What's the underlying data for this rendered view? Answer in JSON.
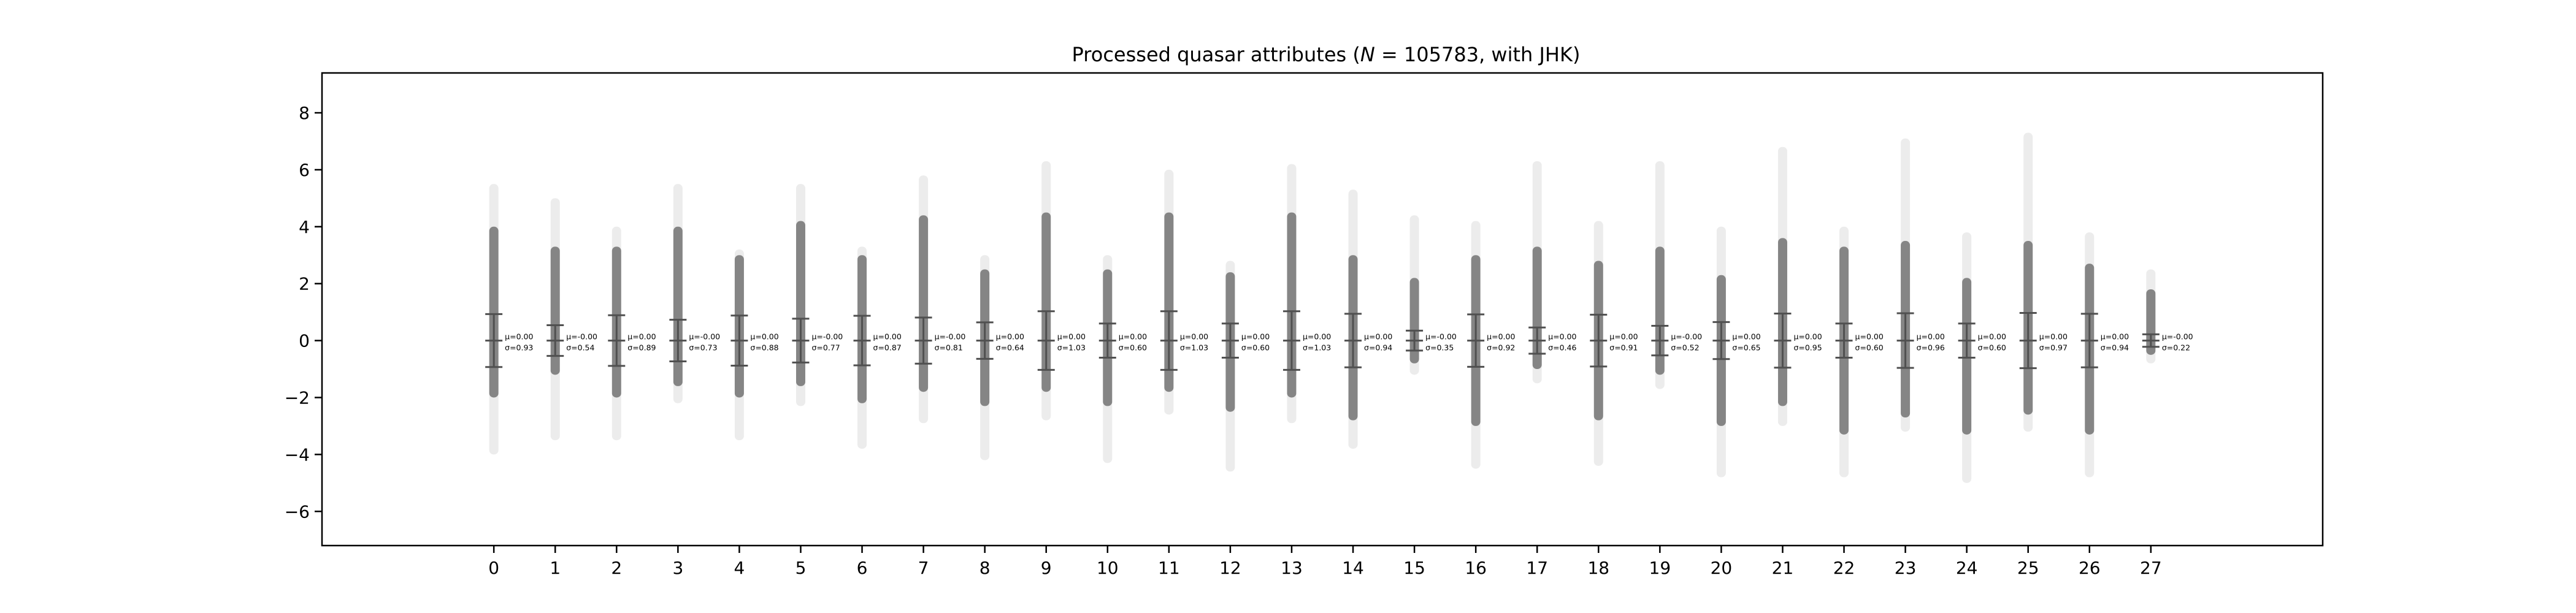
{
  "chart_data": {
    "type": "strip",
    "title": "Processed quasar attributes (N = 105783, with JHK)",
    "title_parts": [
      "Processed quasar attributes (",
      "N",
      " = 105783, with JHK)"
    ],
    "xlabel": "",
    "ylabel": "",
    "xlim": [
      -2.8,
      29.8
    ],
    "ylim": [
      -7.2,
      9.4
    ],
    "yticks": [
      -6,
      -4,
      -2,
      0,
      2,
      4,
      6,
      8
    ],
    "grid": false,
    "point_color": "#808080",
    "errorbar_color": "#505050",
    "attributes": [
      {
        "x": 0,
        "label": "0",
        "mean": 0.0,
        "mean_text": "μ=0.00",
        "std": 0.93,
        "std_text": "σ=0.93",
        "core": [
          -2.0,
          4.0
        ],
        "halo": [
          -4.0,
          5.5
        ]
      },
      {
        "x": 1,
        "label": "1",
        "mean": 0.0,
        "mean_text": "μ=-0.00",
        "std": 0.54,
        "std_text": "σ=0.54",
        "core": [
          -1.2,
          3.3
        ],
        "halo": [
          -3.5,
          5.0
        ]
      },
      {
        "x": 2,
        "label": "2",
        "mean": 0.0,
        "mean_text": "μ=0.00",
        "std": 0.89,
        "std_text": "σ=0.89",
        "core": [
          -2.0,
          3.3
        ],
        "halo": [
          -3.5,
          4.0
        ]
      },
      {
        "x": 3,
        "label": "3",
        "mean": 0.0,
        "mean_text": "μ=-0.00",
        "std": 0.73,
        "std_text": "σ=0.73",
        "core": [
          -1.6,
          4.0
        ],
        "halo": [
          -2.2,
          5.5
        ]
      },
      {
        "x": 4,
        "label": "4",
        "mean": 0.0,
        "mean_text": "μ=0.00",
        "std": 0.88,
        "std_text": "σ=0.88",
        "core": [
          -2.0,
          3.0
        ],
        "halo": [
          -3.5,
          3.2
        ]
      },
      {
        "x": 5,
        "label": "5",
        "mean": 0.0,
        "mean_text": "μ=-0.00",
        "std": 0.77,
        "std_text": "σ=0.77",
        "core": [
          -1.6,
          4.2
        ],
        "halo": [
          -2.3,
          5.5
        ]
      },
      {
        "x": 6,
        "label": "6",
        "mean": 0.0,
        "mean_text": "μ=0.00",
        "std": 0.87,
        "std_text": "σ=0.87",
        "core": [
          -2.2,
          3.0
        ],
        "halo": [
          -3.8,
          3.3
        ]
      },
      {
        "x": 7,
        "label": "7",
        "mean": 0.0,
        "mean_text": "μ=-0.00",
        "std": 0.81,
        "std_text": "σ=0.81",
        "core": [
          -1.8,
          4.4
        ],
        "halo": [
          -2.9,
          5.8
        ]
      },
      {
        "x": 8,
        "label": "8",
        "mean": 0.0,
        "mean_text": "μ=0.00",
        "std": 0.64,
        "std_text": "σ=0.64",
        "core": [
          -2.3,
          2.5
        ],
        "halo": [
          -4.2,
          3.0
        ]
      },
      {
        "x": 9,
        "label": "9",
        "mean": 0.0,
        "mean_text": "μ=0.00",
        "std": 1.03,
        "std_text": "σ=1.03",
        "core": [
          -1.8,
          4.5
        ],
        "halo": [
          -2.8,
          6.3
        ]
      },
      {
        "x": 10,
        "label": "10",
        "mean": 0.0,
        "mean_text": "μ=0.00",
        "std": 0.6,
        "std_text": "σ=0.60",
        "core": [
          -2.3,
          2.5
        ],
        "halo": [
          -4.3,
          3.0
        ]
      },
      {
        "x": 11,
        "label": "11",
        "mean": 0.0,
        "mean_text": "μ=0.00",
        "std": 1.03,
        "std_text": "σ=1.03",
        "core": [
          -1.8,
          4.5
        ],
        "halo": [
          -2.6,
          6.0
        ]
      },
      {
        "x": 12,
        "label": "12",
        "mean": 0.0,
        "mean_text": "μ=0.00",
        "std": 0.6,
        "std_text": "σ=0.60",
        "core": [
          -2.5,
          2.4
        ],
        "halo": [
          -4.6,
          2.8
        ]
      },
      {
        "x": 13,
        "label": "13",
        "mean": 0.0,
        "mean_text": "μ=0.00",
        "std": 1.03,
        "std_text": "σ=1.03",
        "core": [
          -2.0,
          4.5
        ],
        "halo": [
          -2.9,
          6.2
        ]
      },
      {
        "x": 14,
        "label": "14",
        "mean": 0.0,
        "mean_text": "μ=0.00",
        "std": 0.94,
        "std_text": "σ=0.94",
        "core": [
          -2.8,
          3.0
        ],
        "halo": [
          -3.8,
          5.3
        ]
      },
      {
        "x": 15,
        "label": "15",
        "mean": 0.0,
        "mean_text": "μ=-0.00",
        "std": 0.35,
        "std_text": "σ=0.35",
        "core": [
          -0.8,
          2.2
        ],
        "halo": [
          -1.2,
          4.4
        ]
      },
      {
        "x": 16,
        "label": "16",
        "mean": 0.0,
        "mean_text": "μ=0.00",
        "std": 0.92,
        "std_text": "σ=0.92",
        "core": [
          -3.0,
          3.0
        ],
        "halo": [
          -4.5,
          4.2
        ]
      },
      {
        "x": 17,
        "label": "17",
        "mean": 0.0,
        "mean_text": "μ=0.00",
        "std": 0.46,
        "std_text": "σ=0.46",
        "core": [
          -1.0,
          3.3
        ],
        "halo": [
          -1.5,
          6.3
        ]
      },
      {
        "x": 18,
        "label": "18",
        "mean": 0.0,
        "mean_text": "μ=0.00",
        "std": 0.91,
        "std_text": "σ=0.91",
        "core": [
          -2.8,
          2.8
        ],
        "halo": [
          -4.4,
          4.2
        ]
      },
      {
        "x": 19,
        "label": "19",
        "mean": 0.0,
        "mean_text": "μ=-0.00",
        "std": 0.52,
        "std_text": "σ=0.52",
        "core": [
          -1.2,
          3.3
        ],
        "halo": [
          -1.7,
          6.3
        ]
      },
      {
        "x": 20,
        "label": "20",
        "mean": 0.0,
        "mean_text": "μ=0.00",
        "std": 0.65,
        "std_text": "σ=0.65",
        "core": [
          -3.0,
          2.3
        ],
        "halo": [
          -4.8,
          4.0
        ]
      },
      {
        "x": 21,
        "label": "21",
        "mean": 0.0,
        "mean_text": "μ=0.00",
        "std": 0.95,
        "std_text": "σ=0.95",
        "core": [
          -2.3,
          3.6
        ],
        "halo": [
          -3.0,
          6.8
        ]
      },
      {
        "x": 22,
        "label": "22",
        "mean": 0.0,
        "mean_text": "μ=0.00",
        "std": 0.6,
        "std_text": "σ=0.60",
        "core": [
          -3.3,
          3.3
        ],
        "halo": [
          -4.8,
          4.0
        ]
      },
      {
        "x": 23,
        "label": "23",
        "mean": 0.0,
        "mean_text": "μ=0.00",
        "std": 0.96,
        "std_text": "σ=0.96",
        "core": [
          -2.7,
          3.5
        ],
        "halo": [
          -3.2,
          7.1
        ]
      },
      {
        "x": 24,
        "label": "24",
        "mean": 0.0,
        "mean_text": "μ=0.00",
        "std": 0.6,
        "std_text": "σ=0.60",
        "core": [
          -3.3,
          2.2
        ],
        "halo": [
          -5.0,
          3.8
        ]
      },
      {
        "x": 25,
        "label": "25",
        "mean": 0.0,
        "mean_text": "μ=0.00",
        "std": 0.97,
        "std_text": "σ=0.97",
        "core": [
          -2.6,
          3.5
        ],
        "halo": [
          -3.2,
          7.3
        ]
      },
      {
        "x": 26,
        "label": "26",
        "mean": 0.0,
        "mean_text": "μ=0.00",
        "std": 0.94,
        "std_text": "σ=0.94",
        "core": [
          -3.3,
          2.7
        ],
        "halo": [
          -4.8,
          3.8
        ]
      },
      {
        "x": 27,
        "label": "27",
        "mean": 0.0,
        "mean_text": "μ=-0.00",
        "std": 0.22,
        "std_text": "σ=0.22",
        "core": [
          -0.5,
          1.8
        ],
        "halo": [
          -0.8,
          2.5
        ]
      }
    ]
  }
}
